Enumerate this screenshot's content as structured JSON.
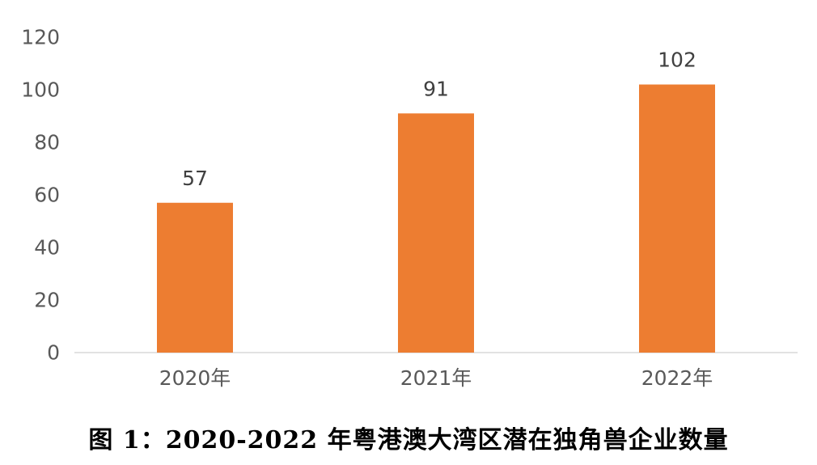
{
  "chart_data": {
    "type": "bar",
    "categories": [
      "2020年",
      "2021年",
      "2022年"
    ],
    "values": [
      57,
      91,
      102
    ],
    "data_labels": [
      "57",
      "91",
      "102"
    ],
    "ylim": [
      0,
      120
    ],
    "yticks": [
      0,
      20,
      40,
      60,
      80,
      100,
      120
    ],
    "title": "",
    "xlabel": "",
    "ylabel": "",
    "grid": false,
    "legend": "none",
    "bar_color": "#ED7D31",
    "axis_color": "#D9D9D9"
  },
  "caption": "图 1：2020-2022 年粤港澳大湾区潜在独角兽企业数量"
}
